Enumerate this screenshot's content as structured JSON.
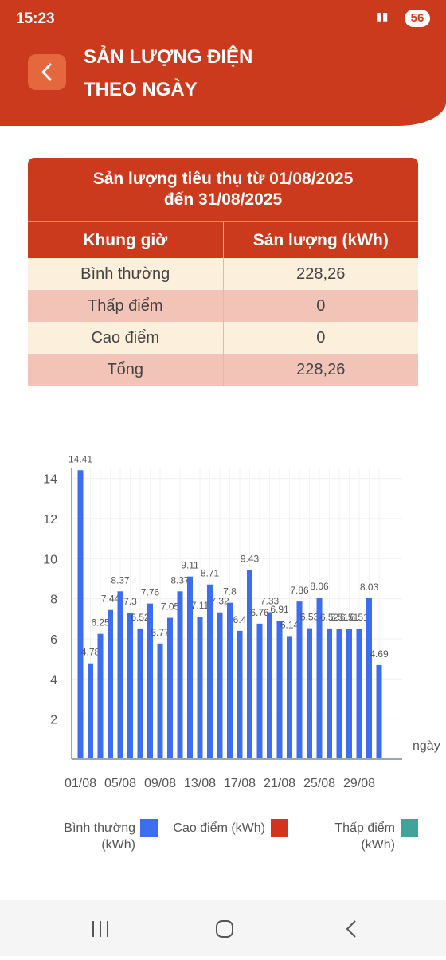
{
  "status_bar": {
    "time": "15:23",
    "battery": "56"
  },
  "header": {
    "title_lines": [
      "SẢN LƯỢNG ĐIỆN",
      "THEO NGÀY"
    ]
  },
  "table": {
    "title_lines": [
      "Sản lượng tiêu thụ từ 01/08/2025",
      "đến 31/08/2025"
    ],
    "columns": [
      "Khung giờ",
      "Sản lượng (kWh)"
    ],
    "rows": [
      [
        "Bình thường",
        "228,26"
      ],
      [
        "Thấp điểm",
        "0"
      ],
      [
        "Cao điểm",
        "0"
      ],
      [
        "Tổng",
        "228,26"
      ]
    ]
  },
  "chart_data": {
    "type": "bar",
    "x_label": "ngày",
    "categories": [
      "01/08",
      null,
      null,
      null,
      "05/08",
      null,
      null,
      null,
      "09/08",
      null,
      null,
      null,
      "13/08",
      null,
      null,
      null,
      "17/08",
      null,
      null,
      null,
      "21/08",
      null,
      null,
      null,
      "25/08",
      null,
      null,
      null,
      "29/08",
      null,
      null
    ],
    "series": [
      {
        "name": "Bình thường (kWh)",
        "color": "#3d6ef2",
        "values": [
          14.41,
          4.78,
          6.25,
          7.44,
          8.37,
          7.3,
          6.52,
          7.76,
          5.77,
          7.05,
          8.37,
          9.11,
          7.11,
          8.71,
          7.32,
          7.8,
          6.4,
          9.43,
          6.76,
          7.33,
          6.91,
          6.14,
          7.86,
          6.53,
          8.06,
          6.52,
          6.51,
          6.51,
          6.51,
          8.03,
          4.69
        ]
      },
      {
        "name": "Cao điểm (kWh)",
        "color": "#d5321c",
        "values": [
          0,
          0,
          0,
          0,
          0,
          0,
          0,
          0,
          0,
          0,
          0,
          0,
          0,
          0,
          0,
          0,
          0,
          0,
          0,
          0,
          0,
          0,
          0,
          0,
          0,
          0,
          0,
          0,
          0,
          0,
          0
        ]
      },
      {
        "name": "Thấp điểm (kWh)",
        "color": "#41a39a",
        "values": [
          0,
          0,
          0,
          0,
          0,
          0,
          0,
          0,
          0,
          0,
          0,
          0,
          0,
          0,
          0,
          0,
          0,
          0,
          0,
          0,
          0,
          0,
          0,
          0,
          0,
          0,
          0,
          0,
          0,
          0,
          0
        ]
      }
    ],
    "ylim": [
      0,
      14.5
    ],
    "yticks": [
      2,
      4,
      6,
      8,
      10,
      12,
      14
    ],
    "grid": true
  }
}
